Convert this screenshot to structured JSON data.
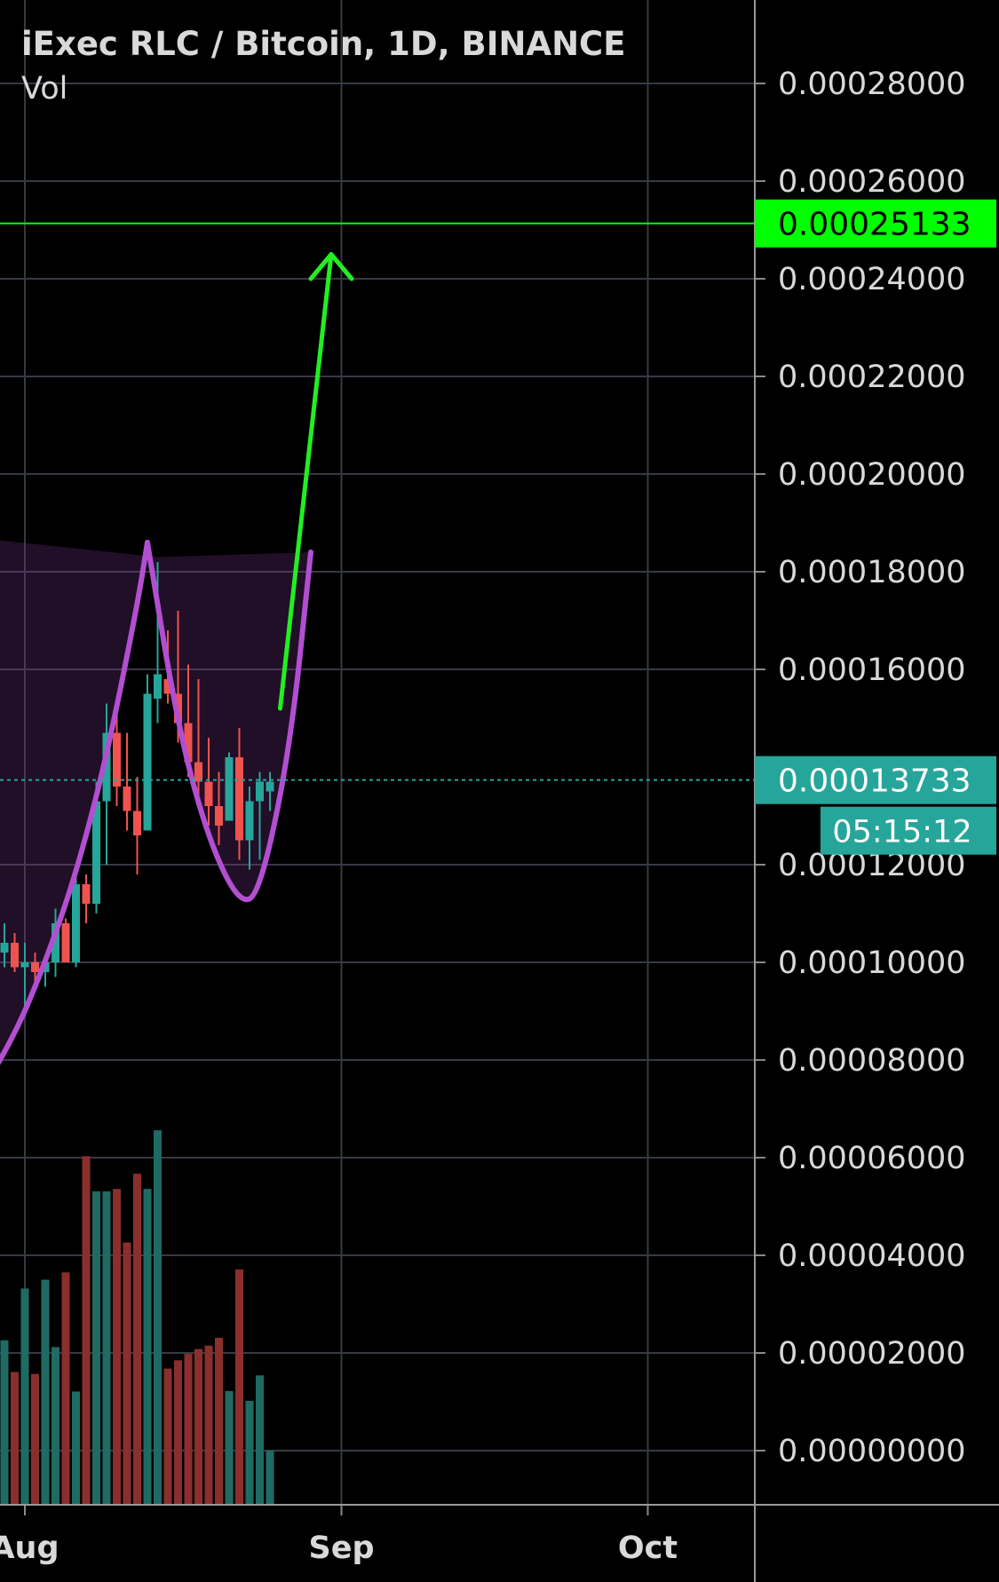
{
  "header": {
    "title": "iExec RLC / Bitcoin, 1D, BINANCE",
    "indicator": "Vol"
  },
  "colors": {
    "background": "#000000",
    "grid": "#363a45",
    "axis_text": "#d9d9d9",
    "up": "#26a69a",
    "down": "#ef5350",
    "vol_up": "#1f6b64",
    "vol_down": "#8a2f2d",
    "target_line": "#00ff00",
    "cup_stroke": "#b24fd1",
    "cup_fill": "rgba(120,50,140,0.28)",
    "arrow": "#22ee22",
    "last_price": "#26a69a"
  },
  "chart_data": {
    "type": "candlestick",
    "title": "iExec RLC / Bitcoin, 1D, BINANCE",
    "price_axis": {
      "ticks": [
        "0.00028000",
        "0.00026000",
        "0.00024000",
        "0.00022000",
        "0.00020000",
        "0.00018000",
        "0.00016000",
        "0.00012000",
        "0.00010000",
        "0.00008000",
        "0.00006000",
        "0.00004000",
        "0.00002000",
        "0.00000000"
      ],
      "tick_values": [
        0.00028,
        0.00026,
        0.00024,
        0.00022,
        0.0002,
        0.00018,
        0.00016,
        0.00012,
        0.0001,
        8e-05,
        6e-05,
        4e-05,
        2e-05,
        0.0
      ],
      "range": [
        -1.15e-05,
        0.0002933
      ]
    },
    "time_axis": {
      "labels": [
        "Aug",
        "Sep",
        "Oct"
      ],
      "dates": [
        "2020-08-01",
        "2020-09-01",
        "2020-10-01"
      ],
      "range": [
        "2020-07-29",
        "2020-10-10"
      ]
    },
    "candles": [
      {
        "date": "2020-07-29",
        "open": 0.000104,
        "high": 0.000114,
        "low": 9.8e-05,
        "close": 0.000102,
        "volume": 4.62e-05
      },
      {
        "date": "2020-07-30",
        "open": 0.000102,
        "high": 0.000108,
        "low": 9.9e-05,
        "close": 0.000104,
        "volume": 2.26e-05
      },
      {
        "date": "2020-07-31",
        "open": 0.000104,
        "high": 0.000106,
        "low": 9.8e-05,
        "close": 9.9e-05,
        "volume": 1.61e-05
      },
      {
        "date": "2020-08-01",
        "open": 9.9e-05,
        "high": 0.000104,
        "low": 8.9e-05,
        "close": 0.0001,
        "volume": 3.32e-05
      },
      {
        "date": "2020-08-02",
        "open": 0.0001,
        "high": 0.000102,
        "low": 9.6e-05,
        "close": 9.8e-05,
        "volume": 1.57e-05
      },
      {
        "date": "2020-08-03",
        "open": 9.8e-05,
        "high": 0.000101,
        "low": 9.5e-05,
        "close": 0.0001,
        "volume": 3.5e-05
      },
      {
        "date": "2020-08-04",
        "open": 0.0001,
        "high": 0.000111,
        "low": 9.7e-05,
        "close": 0.000108,
        "volume": 2.12e-05
      },
      {
        "date": "2020-08-05",
        "open": 0.000108,
        "high": 0.000109,
        "low": 0.0001,
        "close": 0.0001,
        "volume": 3.65e-05
      },
      {
        "date": "2020-08-06",
        "open": 0.0001,
        "high": 0.000119,
        "low": 9.9e-05,
        "close": 0.000116,
        "volume": 1.21e-05
      },
      {
        "date": "2020-08-07",
        "open": 0.000116,
        "high": 0.000118,
        "low": 0.000108,
        "close": 0.000112,
        "volume": 6.03e-05
      },
      {
        "date": "2020-08-08",
        "open": 0.000112,
        "high": 0.000137,
        "low": 0.00011,
        "close": 0.000133,
        "volume": 5.31e-05
      },
      {
        "date": "2020-08-09",
        "open": 0.000133,
        "high": 0.000153,
        "low": 0.00012,
        "close": 0.000147,
        "volume": 5.31e-05
      },
      {
        "date": "2020-08-10",
        "open": 0.000147,
        "high": 0.000151,
        "low": 0.000132,
        "close": 0.000136,
        "volume": 5.36e-05
      },
      {
        "date": "2020-08-11",
        "open": 0.000136,
        "high": 0.000147,
        "low": 0.000127,
        "close": 0.000131,
        "volume": 4.26e-05
      },
      {
        "date": "2020-08-12",
        "open": 0.000131,
        "high": 0.000138,
        "low": 0.000118,
        "close": 0.000126,
        "volume": 5.67e-05
      },
      {
        "date": "2020-08-13",
        "open": 0.000127,
        "high": 0.000159,
        "low": 0.000127,
        "close": 0.000155,
        "volume": 5.36e-05
      },
      {
        "date": "2020-08-14",
        "open": 0.000154,
        "high": 0.000182,
        "low": 0.000149,
        "close": 0.000159,
        "volume": 6.56e-05
      },
      {
        "date": "2020-08-15",
        "open": 0.000158,
        "high": 0.000168,
        "low": 0.000153,
        "close": 0.000155,
        "volume": 1.68e-05
      },
      {
        "date": "2020-08-16",
        "open": 0.000155,
        "high": 0.000172,
        "low": 0.000145,
        "close": 0.000149,
        "volume": 1.85e-05
      },
      {
        "date": "2020-08-17",
        "open": 0.000149,
        "high": 0.000161,
        "low": 0.000138,
        "close": 0.000141,
        "volume": 1.98e-05
      },
      {
        "date": "2020-08-18",
        "open": 0.000141,
        "high": 0.000158,
        "low": 0.000133,
        "close": 0.000137,
        "volume": 2.08e-05
      },
      {
        "date": "2020-08-19",
        "open": 0.000137,
        "high": 0.000146,
        "low": 0.000128,
        "close": 0.000132,
        "volume": 2.15e-05
      },
      {
        "date": "2020-08-20",
        "open": 0.000132,
        "high": 0.000139,
        "low": 0.000124,
        "close": 0.000128,
        "volume": 2.31e-05
      },
      {
        "date": "2020-08-21",
        "open": 0.000129,
        "high": 0.000143,
        "low": 0.000129,
        "close": 0.000142,
        "volume": 1.22e-05
      },
      {
        "date": "2020-08-22",
        "open": 0.000142,
        "high": 0.000148,
        "low": 0.000121,
        "close": 0.000125,
        "volume": 3.71e-05
      },
      {
        "date": "2020-08-23",
        "open": 0.000125,
        "high": 0.000136,
        "low": 0.000119,
        "close": 0.000133,
        "volume": 1.02e-05
      },
      {
        "date": "2020-08-24",
        "open": 0.000133,
        "high": 0.000139,
        "low": 0.000121,
        "close": 0.000137,
        "volume": 1.54e-05
      },
      {
        "date": "2020-08-25",
        "open": 0.000135,
        "high": 0.000139,
        "low": 0.000131,
        "close": 0.000137,
        "volume": -1.3e-06
      }
    ],
    "cup_pattern": {
      "left_outline": [
        [
          "2020-07-27",
          7.1e-05
        ],
        [
          "2020-07-31",
          8.5e-05
        ],
        [
          "2020-08-03",
          0.0001
        ],
        [
          "2020-08-06",
          0.000118
        ],
        [
          "2020-08-09",
          0.000142
        ],
        [
          "2020-08-12",
          0.000173
        ],
        [
          "2020-08-13",
          0.000186
        ]
      ],
      "right_outline": [
        [
          "2020-08-13",
          0.000186
        ],
        [
          "2020-08-16",
          0.000148
        ],
        [
          "2020-08-19",
          0.000125
        ],
        [
          "2020-08-22",
          0.000112
        ],
        [
          "2020-08-24",
          0.000114
        ],
        [
          "2020-08-27",
          0.000144
        ],
        [
          "2020-08-29",
          0.000184
        ]
      ],
      "top_left": [
        "2020-07-27",
        0.000187
      ],
      "top_right": [
        "2020-08-29",
        0.000184
      ],
      "top_peak_gap": [
        "2020-08-14",
        0.000183
      ]
    },
    "projection_arrow": {
      "from": [
        "2020-08-26",
        0.000152
      ],
      "to": [
        "2020-08-31",
        0.000245
      ],
      "head_left": [
        "2020-08-29",
        0.00024
      ],
      "head_right": [
        "2020-09-02",
        0.00024
      ]
    },
    "target_level": {
      "value": 0.00025133,
      "label": "0.00025133"
    },
    "last_price": {
      "value": 0.00013733,
      "label": "0.00013733",
      "countdown": "05:15:12"
    }
  }
}
